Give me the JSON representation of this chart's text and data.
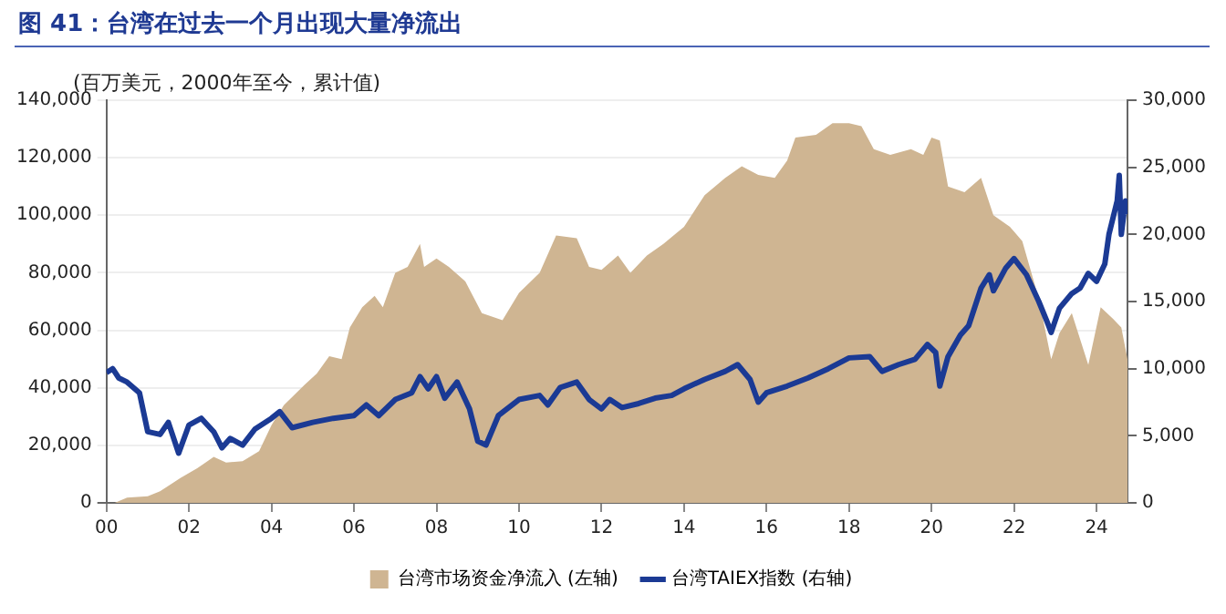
{
  "chart_data": {
    "type": "area",
    "title": "图 41：台湾在过去一个月出现大量净流出",
    "ylabel": "(百万美元，2000年至今，累计值)",
    "xlim": [
      2000,
      2024.75
    ],
    "xticks": [
      {
        "value": 2000,
        "label": "00"
      },
      {
        "value": 2002,
        "label": "02"
      },
      {
        "value": 2004,
        "label": "04"
      },
      {
        "value": 2006,
        "label": "06"
      },
      {
        "value": 2008,
        "label": "08"
      },
      {
        "value": 2010,
        "label": "10"
      },
      {
        "value": 2012,
        "label": "12"
      },
      {
        "value": 2014,
        "label": "14"
      },
      {
        "value": 2016,
        "label": "16"
      },
      {
        "value": 2018,
        "label": "18"
      },
      {
        "value": 2020,
        "label": "20"
      },
      {
        "value": 2022,
        "label": "22"
      },
      {
        "value": 2024,
        "label": "24"
      }
    ],
    "ylim": [
      0,
      140000
    ],
    "yticks": [
      {
        "value": 0,
        "label": "0"
      },
      {
        "value": 20000,
        "label": "20,000"
      },
      {
        "value": 40000,
        "label": "40,000"
      },
      {
        "value": 60000,
        "label": "60,000"
      },
      {
        "value": 80000,
        "label": "80,000"
      },
      {
        "value": 100000,
        "label": "100,000"
      },
      {
        "value": 120000,
        "label": "120,000"
      },
      {
        "value": 140000,
        "label": "140,000"
      }
    ],
    "y2lim": [
      0,
      30000
    ],
    "y2ticks": [
      {
        "value": 0,
        "label": "0"
      },
      {
        "value": 5000,
        "label": "5,000"
      },
      {
        "value": 10000,
        "label": "10,000"
      },
      {
        "value": 15000,
        "label": "15,000"
      },
      {
        "value": 20000,
        "label": "20,000"
      },
      {
        "value": 25000,
        "label": "25,000"
      },
      {
        "value": 30000,
        "label": "30,000"
      }
    ],
    "grid": "y",
    "legend": "bottom",
    "series": [
      {
        "name": "台湾市场资金净流入 (左轴)",
        "color": "#cfb592",
        "x": [
          2000.2,
          2000.5,
          2001,
          2001.3,
          2001.8,
          2002.2,
          2002.6,
          2002.9,
          2003.3,
          2003.7,
          2004,
          2004.3,
          2004.8,
          2005.1,
          2005.4,
          2005.7,
          2005.9,
          2006.2,
          2006.5,
          2006.7,
          2007,
          2007.3,
          2007.6,
          2007.7,
          2008,
          2008.3,
          2008.7,
          2009.1,
          2009.6,
          2010,
          2010.5,
          2010.9,
          2011.4,
          2011.7,
          2012,
          2012.4,
          2012.7,
          2013.1,
          2013.5,
          2014,
          2014.5,
          2015,
          2015.4,
          2015.8,
          2016.2,
          2016.5,
          2016.7,
          2017.2,
          2017.6,
          2018,
          2018.3,
          2018.6,
          2019,
          2019.5,
          2019.8,
          2020,
          2020.2,
          2020.4,
          2020.8,
          2021.2,
          2021.5,
          2021.9,
          2022.2,
          2022.6,
          2022.9,
          2023.1,
          2023.4,
          2023.8,
          2024.1,
          2024.4,
          2024.6,
          2024.75
        ],
        "values": [
          0,
          1800,
          2300,
          4000,
          8700,
          12000,
          16000,
          14000,
          14500,
          18000,
          27000,
          34000,
          41000,
          45000,
          51000,
          50000,
          61000,
          68000,
          72000,
          68000,
          80000,
          82000,
          90000,
          82000,
          85000,
          82000,
          77000,
          66000,
          63500,
          73000,
          80000,
          93000,
          92000,
          82000,
          81000,
          86000,
          80000,
          86000,
          90000,
          96000,
          107000,
          113000,
          117000,
          114000,
          113000,
          119000,
          127000,
          128000,
          132000,
          132000,
          131000,
          123000,
          121000,
          123000,
          121000,
          127000,
          126000,
          110000,
          108000,
          113000,
          100000,
          96000,
          91000,
          71000,
          50000,
          59000,
          66000,
          48000,
          68000,
          64000,
          61000,
          50000
        ]
      },
      {
        "name": "台湾TAIEX指数 (右轴)",
        "type": "line",
        "axis": "y2",
        "color": "#1b3a94",
        "x": [
          2000,
          2000.15,
          2000.3,
          2000.5,
          2000.8,
          2001,
          2001.3,
          2001.5,
          2001.75,
          2002,
          2002.3,
          2002.6,
          2002.8,
          2003,
          2003.3,
          2003.6,
          2004,
          2004.2,
          2004.5,
          2005,
          2005.5,
          2006,
          2006.3,
          2006.6,
          2007,
          2007.4,
          2007.6,
          2007.8,
          2008,
          2008.2,
          2008.5,
          2008.8,
          2009,
          2009.2,
          2009.5,
          2010,
          2010.5,
          2010.7,
          2011,
          2011.4,
          2011.7,
          2012,
          2012.2,
          2012.5,
          2012.9,
          2013.3,
          2013.7,
          2014,
          2014.5,
          2015,
          2015.3,
          2015.6,
          2015.8,
          2016,
          2016.5,
          2017,
          2017.5,
          2018,
          2018.5,
          2018.8,
          2019.2,
          2019.6,
          2019.9,
          2020.1,
          2020.2,
          2020.4,
          2020.7,
          2020.9,
          2021.2,
          2021.4,
          2021.5,
          2021.8,
          2022,
          2022.3,
          2022.6,
          2022.8,
          2022.9,
          2023.1,
          2023.4,
          2023.6,
          2023.8,
          2024,
          2024.2,
          2024.3,
          2024.5,
          2024.55,
          2024.6,
          2024.7,
          2024.75
        ],
        "values": [
          9700,
          10000,
          9300,
          9000,
          8200,
          5300,
          5100,
          6000,
          3700,
          5800,
          6300,
          5300,
          4100,
          4800,
          4300,
          5500,
          6300,
          6800,
          5600,
          6000,
          6300,
          6500,
          7300,
          6500,
          7700,
          8200,
          9400,
          8500,
          9400,
          7800,
          9000,
          7000,
          4600,
          4300,
          6500,
          7700,
          8000,
          7300,
          8600,
          9000,
          7700,
          7000,
          7700,
          7100,
          7400,
          7800,
          8000,
          8500,
          9200,
          9800,
          10300,
          9200,
          7500,
          8200,
          8700,
          9300,
          10000,
          10800,
          10900,
          9800,
          10300,
          10700,
          11800,
          11200,
          8700,
          10900,
          12500,
          13200,
          16000,
          17000,
          15800,
          17500,
          18200,
          17000,
          15000,
          13500,
          12700,
          14500,
          15600,
          16000,
          17100,
          16500,
          17800,
          20000,
          22500,
          24400,
          20000,
          22500,
          21500
        ]
      }
    ]
  }
}
